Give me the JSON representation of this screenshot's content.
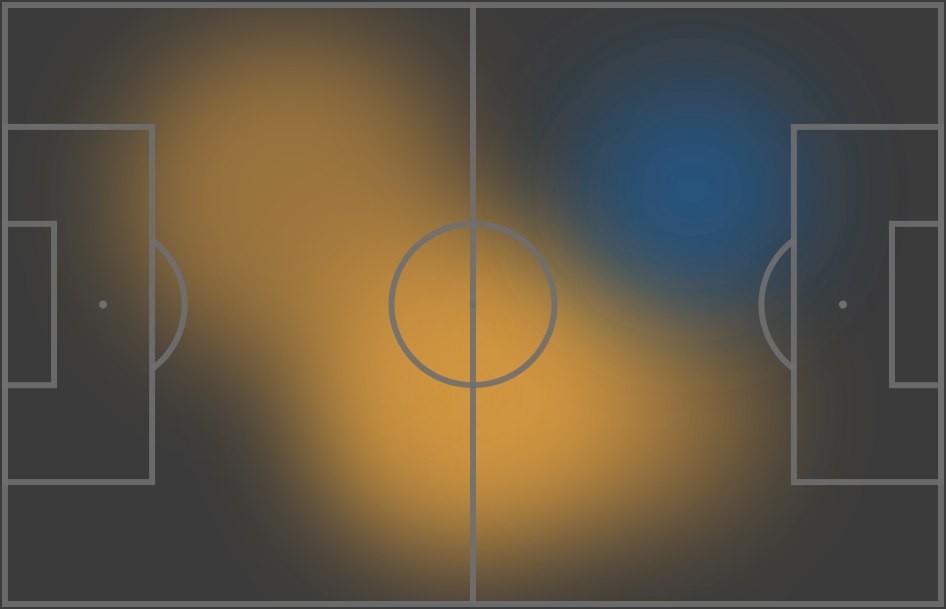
{
  "chart_data": {
    "type": "heatmap",
    "title": "",
    "xlabel": "",
    "ylabel": "",
    "pitch": {
      "units": "meters",
      "length": 105,
      "width": 68,
      "grid": false
    },
    "series": [
      {
        "color": "#e8a33e",
        "points": [
          {
            "x": 52,
            "y": 44,
            "intensity": 1.0,
            "spread": 15
          },
          {
            "x": 32,
            "y": 22,
            "intensity": 0.65,
            "spread": 15
          },
          {
            "x": 72,
            "y": 46,
            "intensity": 0.55,
            "spread": 11
          }
        ]
      },
      {
        "color": "#1f5a8e",
        "points": [
          {
            "x": 77,
            "y": 21,
            "intensity": 1.0,
            "spread": 10
          }
        ]
      }
    ]
  },
  "colors": {
    "background": "#3b3b3b",
    "lines": "#6f6f6f",
    "home_heat": "#e8a33e",
    "away_heat": "#1f5a8e"
  }
}
